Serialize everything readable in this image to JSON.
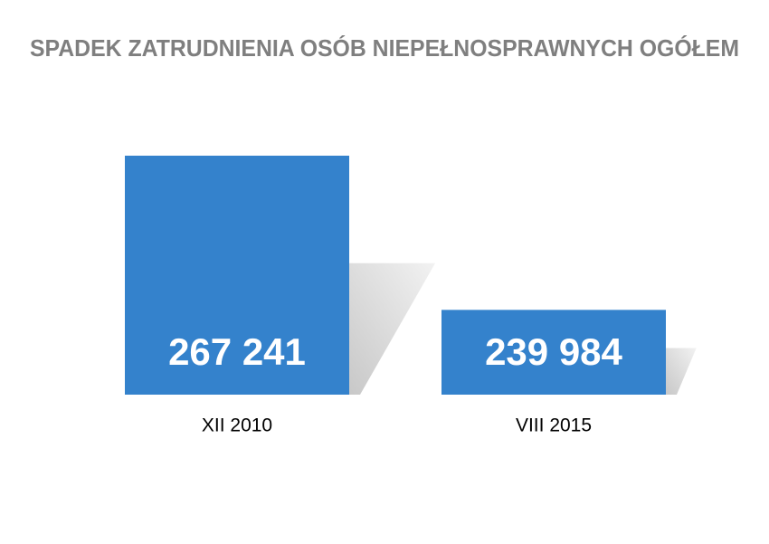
{
  "chart_data": {
    "type": "bar",
    "title": "SPADEK ZATRUDNIENIA OSÓB NIEPEŁNOSPRAWNYCH OGÓŁEM",
    "categories": [
      "XII 2010",
      "VIII 2015"
    ],
    "values": [
      267241,
      239984
    ],
    "value_labels": [
      "267 241",
      "239 984"
    ],
    "color": "#3482cc",
    "ylim": [
      225000,
      275000
    ]
  }
}
